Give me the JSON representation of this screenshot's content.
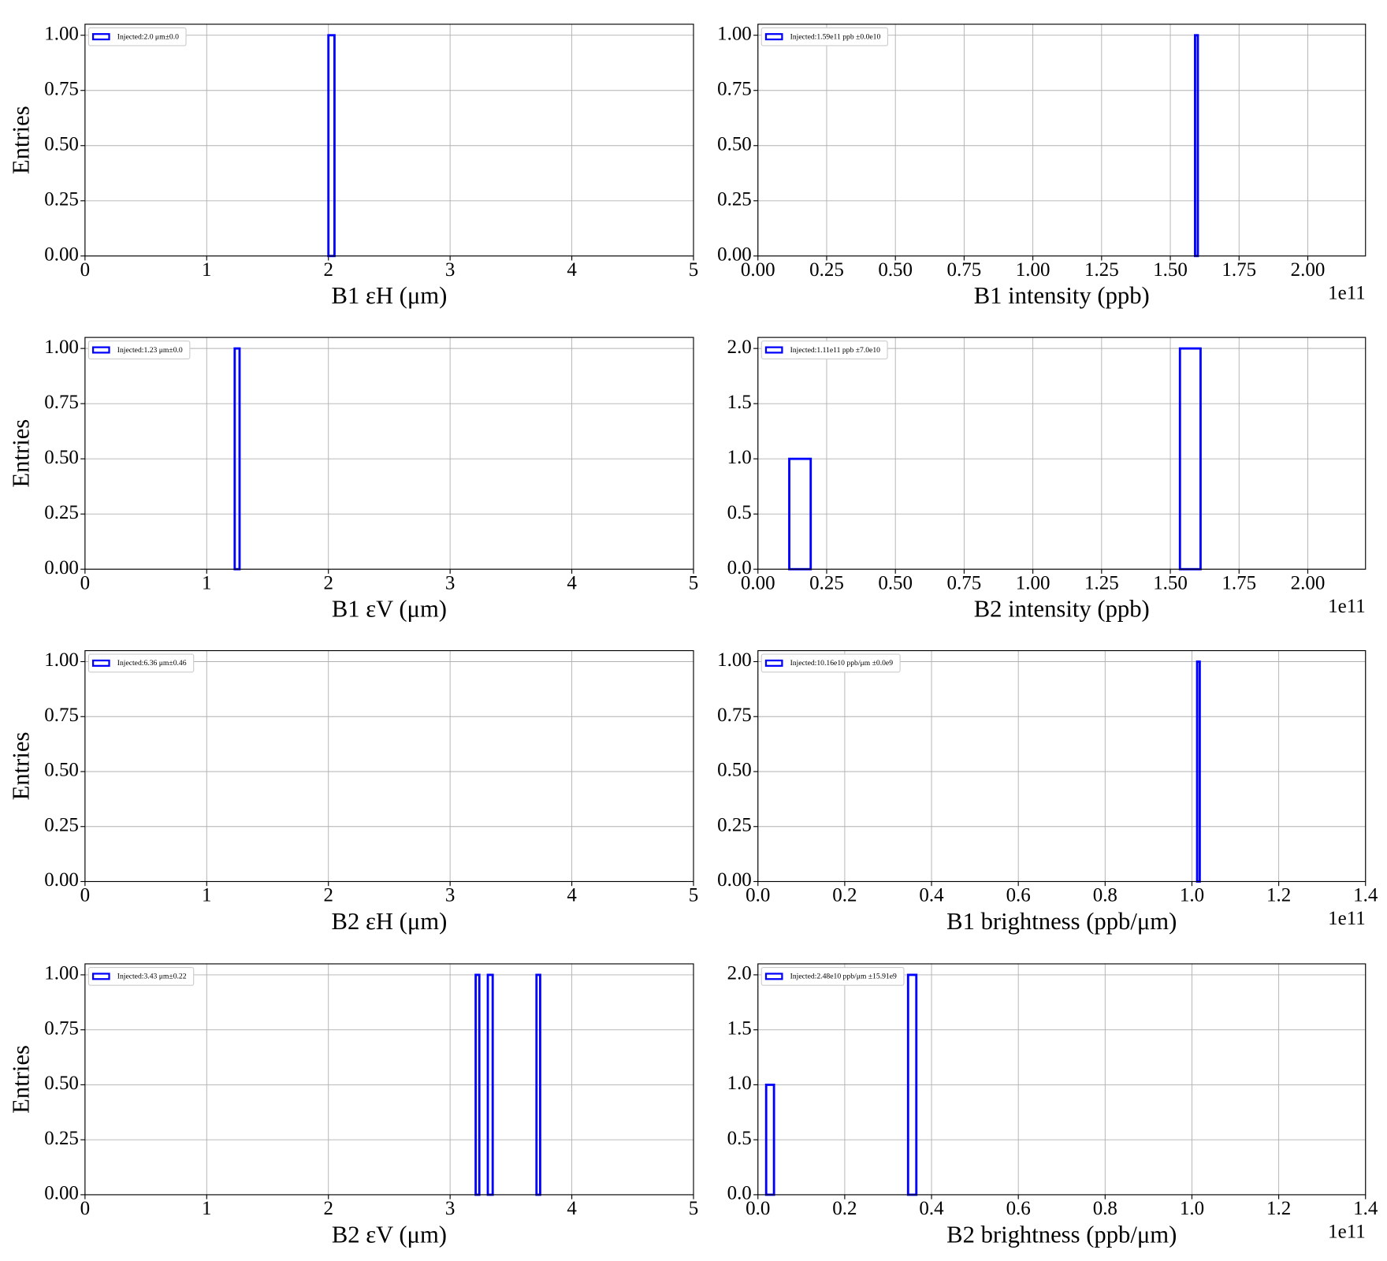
{
  "chart_data": [
    {
      "type": "histogram",
      "xlabel": "B1 εH (μm)",
      "ylabel": "Entries",
      "series": [
        {
          "name": "Injected:2.0 μm±0.0",
          "color": "#0000ff",
          "bins": [
            1.5,
            2.0,
            2.05,
            2.5
          ],
          "counts": [
            0,
            1,
            0
          ]
        }
      ],
      "xlim": [
        0,
        5
      ],
      "xticks": [
        0,
        1,
        2,
        3,
        4,
        5
      ],
      "ylim": [
        0,
        1.05
      ],
      "yticks": [
        {
          "value": 0,
          "label": "0.00"
        },
        {
          "value": 0.25,
          "label": "0.25"
        },
        {
          "value": 0.5,
          "label": "0.50"
        },
        {
          "value": 0.75,
          "label": "0.75"
        },
        {
          "value": 1,
          "label": "1.00"
        }
      ],
      "grid": true
    },
    {
      "type": "histogram",
      "xlabel": "B1 intensity (ppb)",
      "x_offset_label": "1e11",
      "series": [
        {
          "name": "Injected:1.59e11 ppb ±0.0e10",
          "color": "#0000ff",
          "bins": [
            1.59,
            1.6
          ],
          "counts": [
            1
          ]
        }
      ],
      "xlim": [
        0,
        2.21
      ],
      "xticks": [
        {
          "value": 0,
          "label": "0.00"
        },
        0.25,
        {
          "value": 0.5,
          "label": "0.50"
        },
        0.75,
        {
          "value": 1,
          "label": "1.00"
        },
        1.25,
        {
          "value": 1.5,
          "label": "1.50"
        },
        1.75,
        {
          "value": 2,
          "label": "2.00"
        }
      ],
      "ylim": [
        0,
        1.05
      ],
      "yticks": [
        {
          "value": 0,
          "label": "0.00"
        },
        {
          "value": 0.25,
          "label": "0.25"
        },
        {
          "value": 0.5,
          "label": "0.50"
        },
        {
          "value": 0.75,
          "label": "0.75"
        },
        {
          "value": 1,
          "label": "1.00"
        }
      ],
      "grid": true
    },
    {
      "type": "histogram",
      "xlabel": "B1 εV (μm)",
      "ylabel": "Entries",
      "series": [
        {
          "name": "Injected:1.23 μm±0.0",
          "color": "#0000ff",
          "bins": [
            0.73,
            1.23,
            1.27,
            1.73
          ],
          "counts": [
            0,
            1,
            0
          ]
        }
      ],
      "xlim": [
        0,
        5
      ],
      "xticks": [
        0,
        1,
        2,
        3,
        4,
        5
      ],
      "ylim": [
        0,
        1.05
      ],
      "yticks": [
        {
          "value": 0,
          "label": "0.00"
        },
        {
          "value": 0.25,
          "label": "0.25"
        },
        {
          "value": 0.5,
          "label": "0.50"
        },
        {
          "value": 0.75,
          "label": "0.75"
        },
        {
          "value": 1,
          "label": "1.00"
        }
      ],
      "grid": true
    },
    {
      "type": "histogram",
      "xlabel": "B2 intensity (ppb)",
      "x_offset_label": "1e11",
      "series": [
        {
          "name": "Injected:1.11e11 ppb ±7.0e10",
          "color": "#0000ff",
          "bins": [
            0.114,
            0.192,
            1.535,
            1.61
          ],
          "counts": [
            1,
            0,
            2
          ]
        }
      ],
      "xlim": [
        0,
        2.21
      ],
      "xticks": [
        {
          "value": 0,
          "label": "0.00"
        },
        0.25,
        {
          "value": 0.5,
          "label": "0.50"
        },
        0.75,
        {
          "value": 1,
          "label": "1.00"
        },
        1.25,
        {
          "value": 1.5,
          "label": "1.50"
        },
        1.75,
        {
          "value": 2,
          "label": "2.00"
        }
      ],
      "ylim": [
        0,
        2.1
      ],
      "yticks": [
        {
          "value": 0,
          "label": "0.0"
        },
        0.5,
        {
          "value": 1,
          "label": "1.0"
        },
        1.5,
        {
          "value": 2,
          "label": "2.0"
        }
      ],
      "grid": true
    },
    {
      "type": "histogram",
      "xlabel": "B2 εH (μm)",
      "ylabel": "Entries",
      "series": [
        {
          "name": "Injected:6.36 μm±0.46",
          "color": "#0000ff",
          "bins": [],
          "counts": []
        }
      ],
      "xlim": [
        0,
        5
      ],
      "xticks": [
        0,
        1,
        2,
        3,
        4,
        5
      ],
      "ylim": [
        0,
        1.05
      ],
      "yticks": [
        {
          "value": 0,
          "label": "0.00"
        },
        {
          "value": 0.25,
          "label": "0.25"
        },
        {
          "value": 0.5,
          "label": "0.50"
        },
        {
          "value": 0.75,
          "label": "0.75"
        },
        {
          "value": 1,
          "label": "1.00"
        }
      ],
      "grid": true
    },
    {
      "type": "histogram",
      "xlabel": "B1 brightness (ppb/μm)",
      "x_offset_label": "1e11",
      "series": [
        {
          "name": "Injected:10.16e10 ppb/μm ±0.0e9",
          "color": "#0000ff",
          "bins": [
            1.012,
            1.018
          ],
          "counts": [
            1
          ]
        }
      ],
      "xlim": [
        0,
        1.4
      ],
      "xticks": [
        {
          "value": 0,
          "label": "0.0"
        },
        0.2,
        0.4,
        0.6,
        0.8,
        {
          "value": 1,
          "label": "1.0"
        },
        1.2,
        1.4
      ],
      "ylim": [
        0,
        1.05
      ],
      "yticks": [
        {
          "value": 0,
          "label": "0.00"
        },
        {
          "value": 0.25,
          "label": "0.25"
        },
        {
          "value": 0.5,
          "label": "0.50"
        },
        {
          "value": 0.75,
          "label": "0.75"
        },
        {
          "value": 1,
          "label": "1.00"
        }
      ],
      "grid": true
    },
    {
      "type": "histogram",
      "xlabel": "B2 εV (μm)",
      "ylabel": "Entries",
      "series": [
        {
          "name": "Injected:3.43 μm±0.22",
          "color": "#0000ff",
          "bins": [
            3.21,
            3.24,
            3.31,
            3.35,
            3.71,
            3.74
          ],
          "counts": [
            1,
            0,
            1,
            0,
            1
          ]
        }
      ],
      "xlim": [
        0,
        5
      ],
      "xticks": [
        0,
        1,
        2,
        3,
        4,
        5
      ],
      "ylim": [
        0,
        1.05
      ],
      "yticks": [
        {
          "value": 0,
          "label": "0.00"
        },
        {
          "value": 0.25,
          "label": "0.25"
        },
        {
          "value": 0.5,
          "label": "0.50"
        },
        {
          "value": 0.75,
          "label": "0.75"
        },
        {
          "value": 1,
          "label": "1.00"
        }
      ],
      "grid": true
    },
    {
      "type": "histogram",
      "xlabel": "B2 brightness (ppb/μm)",
      "x_offset_label": "1e11",
      "series": [
        {
          "name": "Injected:2.48e10 ppb/μm ±15.91e9",
          "color": "#0000ff",
          "bins": [
            0.019,
            0.037,
            0.346,
            0.365
          ],
          "counts": [
            1,
            0,
            2
          ]
        }
      ],
      "xlim": [
        0,
        1.4
      ],
      "xticks": [
        {
          "value": 0,
          "label": "0.0"
        },
        0.2,
        0.4,
        0.6,
        0.8,
        {
          "value": 1,
          "label": "1.0"
        },
        1.2,
        1.4
      ],
      "ylim": [
        0,
        2.1
      ],
      "yticks": [
        {
          "value": 0,
          "label": "0.0"
        },
        0.5,
        {
          "value": 1,
          "label": "1.0"
        },
        1.5,
        {
          "value": 2,
          "label": "2.0"
        }
      ],
      "grid": true
    }
  ]
}
